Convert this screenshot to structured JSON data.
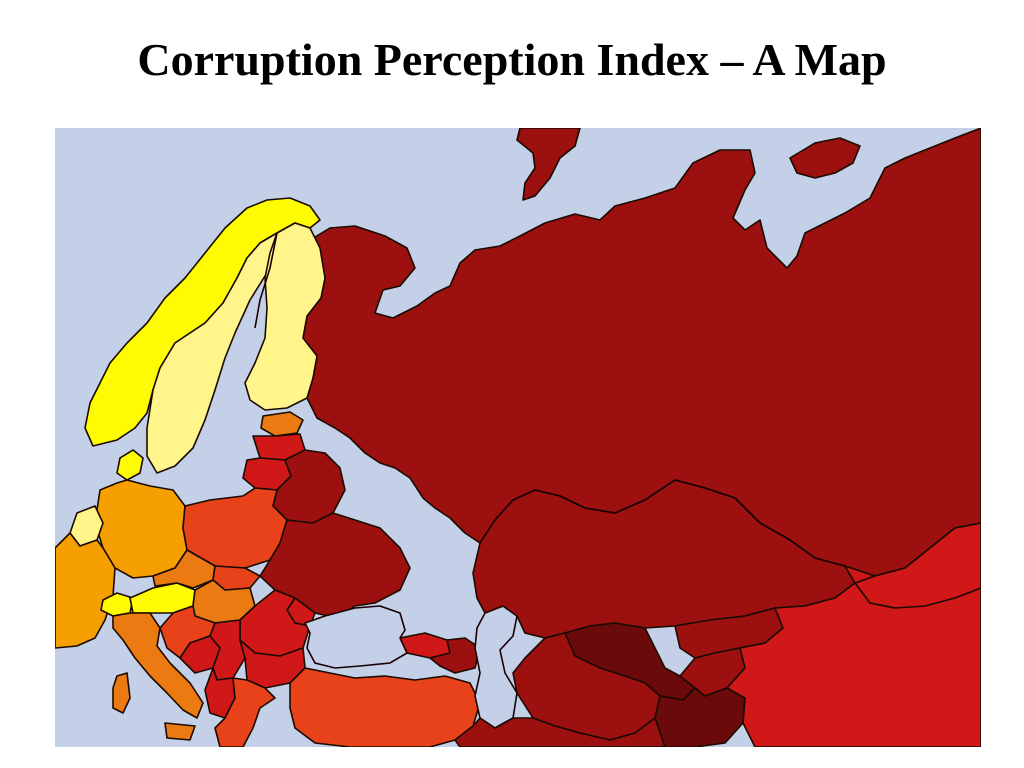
{
  "slide": {
    "title": "Corruption Perception Index – A Map"
  },
  "map": {
    "colors": {
      "sea": "#c4d0e8",
      "very_clean": "#fffb00",
      "clean": "#fff58a",
      "moderate": "#f5a000",
      "elevated": "#ec7a12",
      "high": "#e8421a",
      "very_high": "#d01818",
      "severe": "#9c1010",
      "extreme": "#6a0a0a"
    }
  }
}
